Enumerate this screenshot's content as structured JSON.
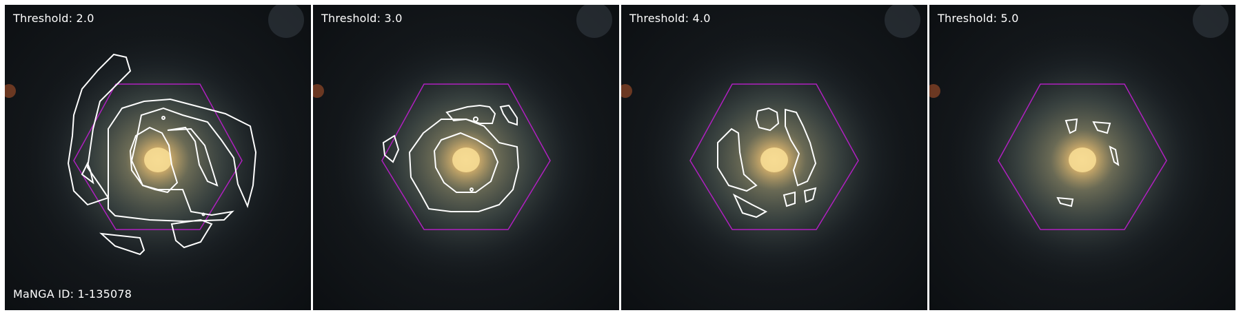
{
  "panels": [
    {
      "label": "Threshold: 2.0"
    },
    {
      "label": "Threshold: 3.0"
    },
    {
      "label": "Threshold: 4.0"
    },
    {
      "label": "Threshold: 5.0"
    }
  ],
  "galaxy_id": "MaNGA ID: 1-135078",
  "colors": {
    "hexagon": "#b020c0",
    "contour": "#ffffff",
    "background": "#0b0d0f",
    "core": "#f0c878"
  }
}
